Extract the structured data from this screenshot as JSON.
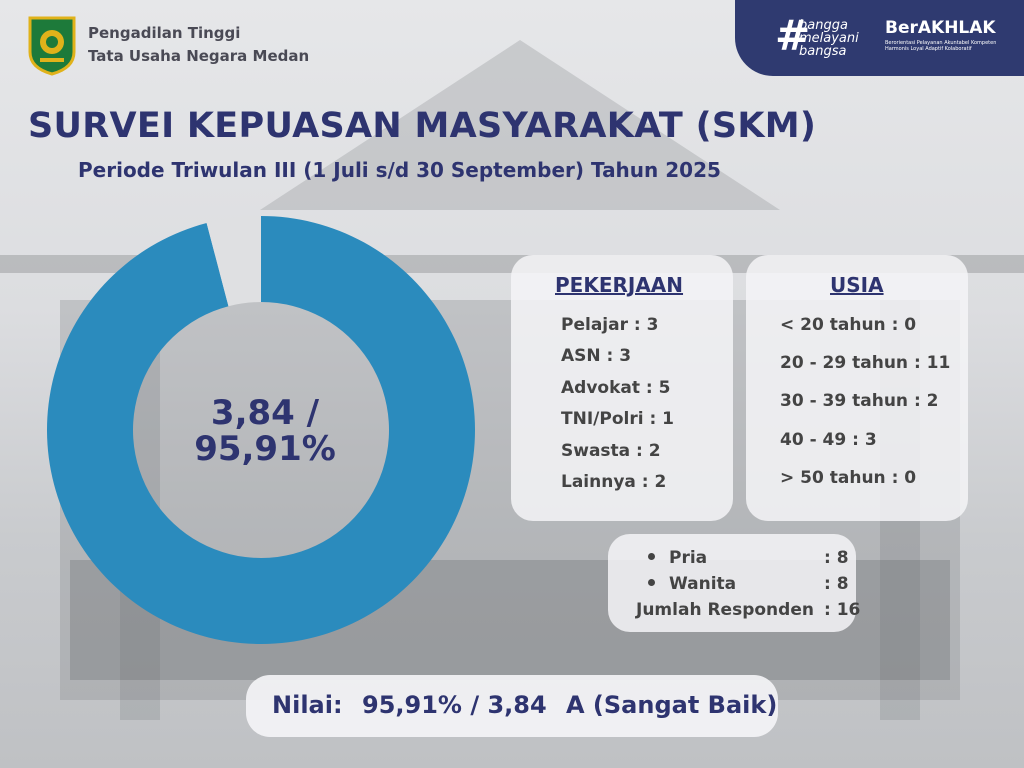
{
  "header": {
    "org_line1": "Pengadilan Tinggi",
    "org_line2": "Tata Usaha Negara Medan",
    "brand_tagline": [
      "bangga",
      "melayani",
      "bangsa"
    ],
    "brand_name": "BerAKHLAK",
    "brand_sub": "Berorientasi Pelayanan Akuntabel Kompeten Harmonis Loyal Adaptif Kolaboratif"
  },
  "title": "SURVEI KEPUASAN MASYARAKAT (SKM)",
  "subtitle": "Periode Triwulan III (1 Juli s/d 30 September) Tahun 2025",
  "chart_data": {
    "type": "pie",
    "categories": [
      "",
      ""
    ],
    "values": [
      95.91,
      4.09
    ],
    "colors": [
      "#2b8bbd",
      "#dfe0e2"
    ],
    "center_label_line1": "3,84 /",
    "center_label_line2": "95,91%"
  },
  "pekerjaan": {
    "heading": "PEKERJAAN",
    "items": [
      "Pelajar : 3",
      "ASN : 3",
      "Advokat : 5",
      "TNI/Polri : 1",
      "Swasta : 2",
      "Lainnya : 2"
    ]
  },
  "usia": {
    "heading": "USIA",
    "items": [
      "< 20 tahun : 0",
      "20 - 29 tahun : 11",
      "30 - 39 tahun : 2",
      "40 - 49 : 3",
      "> 50 tahun : 0"
    ]
  },
  "gender": {
    "pria_label": "Pria",
    "pria_value": ": 8",
    "wanita_label": "Wanita",
    "wanita_value": ": 8",
    "total_label": "Jumlah Responden",
    "total_value": ": 16"
  },
  "nilai": {
    "label": "Nilai:",
    "value": "95,91% / 3,84",
    "grade": "A (Sangat Baik)"
  },
  "colors": {
    "accent": "#2e3470",
    "donut": "#2b8bbd",
    "brand_bg": "#2f3a70"
  }
}
